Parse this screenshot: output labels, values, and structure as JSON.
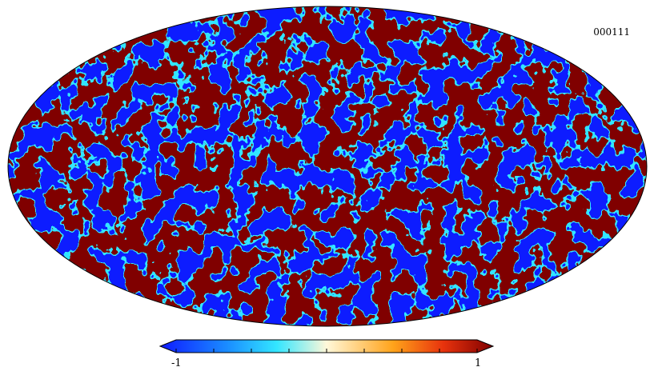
{
  "map": {
    "label": "000111",
    "projection": "mollweide",
    "colormap": "jet",
    "colors": {
      "low": "#0f1aff",
      "mid_low": "#1a8cff",
      "cyan": "#33e6ff",
      "pale": "#fff8d9",
      "orange": "#ffa31a",
      "red": "#e8330d",
      "high": "#800000"
    }
  },
  "colorbar": {
    "min_label": "-1",
    "max_label": "1",
    "min": -1,
    "max": 1,
    "extend": "both"
  }
}
